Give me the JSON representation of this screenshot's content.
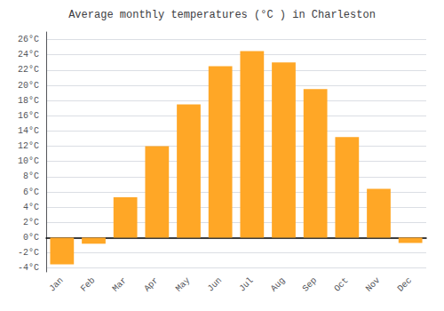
{
  "chart_data": {
    "type": "bar",
    "title": "Average monthly temperatures (°C ) in Charleston",
    "categories": [
      "Jan",
      "Feb",
      "Mar",
      "Apr",
      "May",
      "Jun",
      "Jul",
      "Aug",
      "Sep",
      "Oct",
      "Nov",
      "Dec"
    ],
    "values": [
      -3.5,
      -0.8,
      5.3,
      12.0,
      17.5,
      22.5,
      24.5,
      23.0,
      19.5,
      13.2,
      6.4,
      -0.7
    ],
    "color": "#FFA726",
    "ylim": [
      -4.5,
      27
    ],
    "yticks": [
      {
        "value": -4,
        "label": "-4°C"
      },
      {
        "value": -2,
        "label": "-2°C"
      },
      {
        "value": 0,
        "label": "0°C"
      },
      {
        "value": 2,
        "label": "2°C"
      },
      {
        "value": 4,
        "label": "4°C"
      },
      {
        "value": 6,
        "label": "6°C"
      },
      {
        "value": 8,
        "label": "8°C"
      },
      {
        "value": 10,
        "label": "10°C"
      },
      {
        "value": 12,
        "label": "12°C"
      },
      {
        "value": 14,
        "label": "14°C"
      },
      {
        "value": 16,
        "label": "16°C"
      },
      {
        "value": 18,
        "label": "18°C"
      },
      {
        "value": 20,
        "label": "20°C"
      },
      {
        "value": 22,
        "label": "22°C"
      },
      {
        "value": 24,
        "label": "24°C"
      },
      {
        "value": 26,
        "label": "26°C"
      }
    ],
    "grid": true
  }
}
